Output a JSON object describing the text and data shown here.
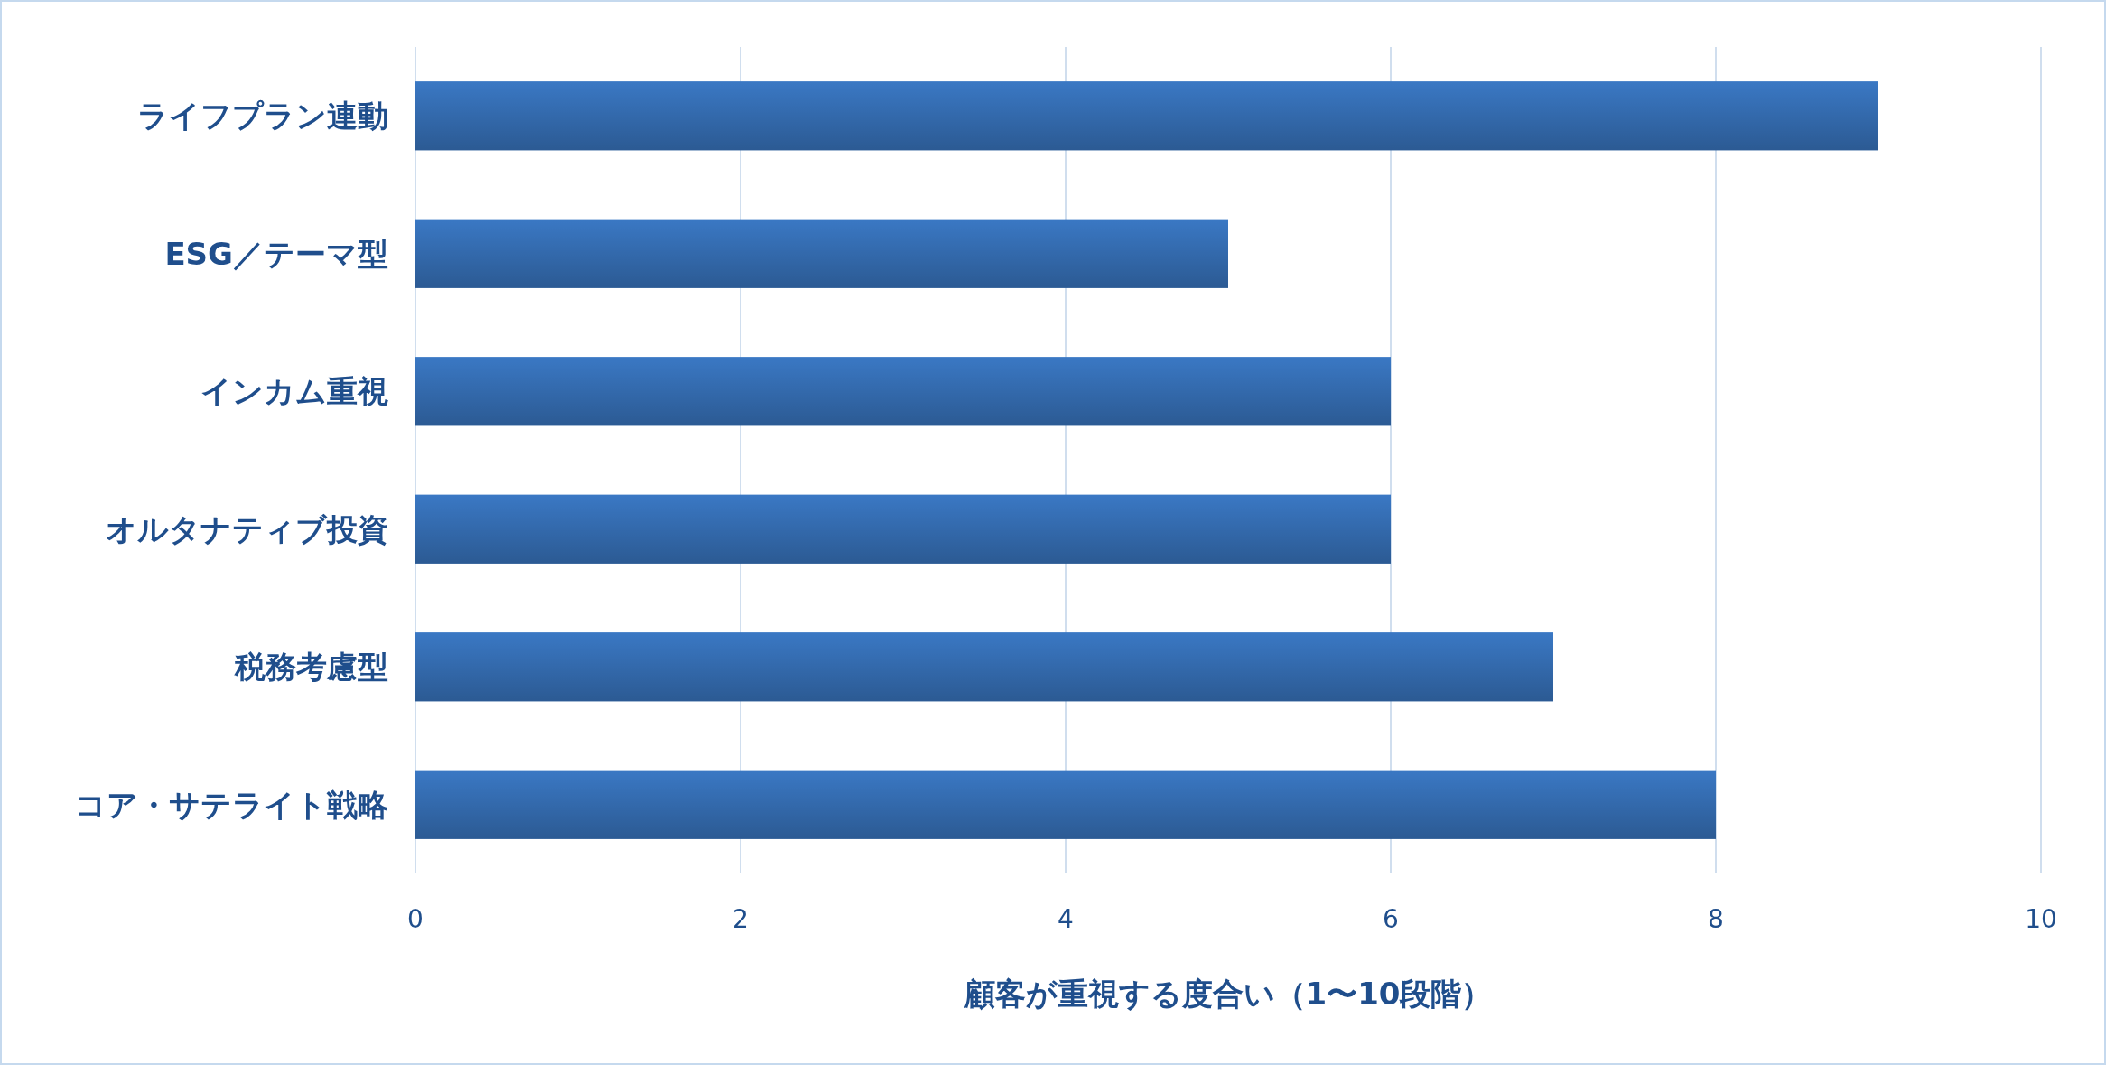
{
  "chart_data": {
    "type": "bar",
    "orientation": "horizontal",
    "categories": [
      "ライフプラン連動",
      "ESG／テーマ型",
      "インカム重視",
      "オルタナティブ投資",
      "税務考慮型",
      "コア・サテライト戦略"
    ],
    "values": [
      9,
      5,
      6,
      6,
      7,
      8
    ],
    "color": "#3a78c4",
    "xlabel": "顧客が重視する度合い（1〜10段階）",
    "xlim": [
      0,
      10
    ],
    "xticks": [
      0,
      2,
      4,
      6,
      8,
      10
    ],
    "grid": "x"
  }
}
